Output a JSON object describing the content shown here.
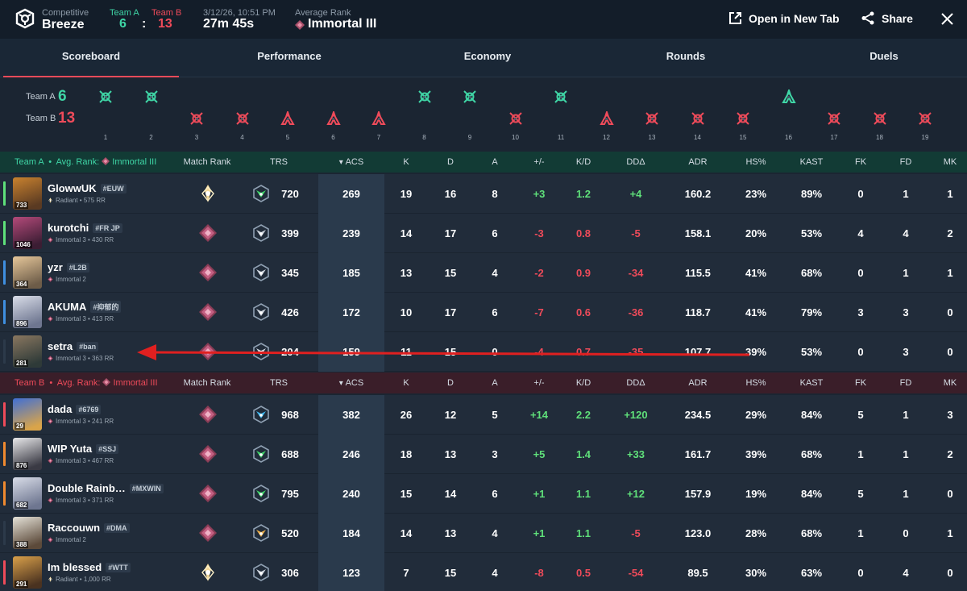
{
  "header": {
    "mode": "Competitive",
    "map": "Breeze",
    "team_a_label": "Team A",
    "team_b_label": "Team B",
    "team_a_score": "6",
    "team_b_score": "13",
    "colon": ":",
    "date": "3/12/26, 10:51 PM",
    "duration": "27m 45s",
    "avg_rank_label": "Average Rank",
    "avg_rank": "Immortal III",
    "open_tab": "Open in New Tab",
    "share": "Share"
  },
  "tabs": [
    "Scoreboard",
    "Performance",
    "Economy",
    "Rounds",
    "Duels"
  ],
  "timeline": {
    "team_a_label": "Team A",
    "team_b_label": "Team B",
    "team_a_score": "6",
    "team_b_score": "13",
    "rounds": [
      {
        "n": "1",
        "winner": "A",
        "type": "elim"
      },
      {
        "n": "2",
        "winner": "A",
        "type": "elim"
      },
      {
        "n": "3",
        "winner": "B",
        "type": "elim"
      },
      {
        "n": "4",
        "winner": "B",
        "type": "elim"
      },
      {
        "n": "5",
        "winner": "B",
        "type": "spike"
      },
      {
        "n": "6",
        "winner": "B",
        "type": "spike"
      },
      {
        "n": "7",
        "winner": "B",
        "type": "spike"
      },
      {
        "n": "8",
        "winner": "A",
        "type": "elim"
      },
      {
        "n": "9",
        "winner": "A",
        "type": "elim"
      },
      {
        "n": "10",
        "winner": "B",
        "type": "elim"
      },
      {
        "n": "11",
        "winner": "A",
        "type": "elim"
      },
      {
        "n": "12",
        "winner": "B",
        "type": "spike"
      },
      {
        "n": "13",
        "winner": "B",
        "type": "elim"
      },
      {
        "n": "14",
        "winner": "B",
        "type": "elim"
      },
      {
        "n": "15",
        "winner": "B",
        "type": "elim"
      },
      {
        "n": "16",
        "winner": "A",
        "type": "spike"
      },
      {
        "n": "17",
        "winner": "B",
        "type": "elim"
      },
      {
        "n": "18",
        "winner": "B",
        "type": "elim"
      },
      {
        "n": "19",
        "winner": "B",
        "type": "elim"
      }
    ]
  },
  "columns": {
    "match_rank": "Match Rank",
    "trs": "TRS",
    "acs": "ACS",
    "k": "K",
    "d": "D",
    "a": "A",
    "pm": "+/-",
    "kd": "K/D",
    "dda": "DDΔ",
    "adr": "ADR",
    "hs": "HS%",
    "kast": "KAST",
    "fk": "FK",
    "fd": "FD",
    "mk": "MK"
  },
  "team_a": {
    "name": "Team A",
    "avg_label": "Avg. Rank:",
    "avg_rank": "Immortal III",
    "color": "#3fd6a6",
    "players": [
      {
        "name": "GlowwUK",
        "tag": "#EUW",
        "rank": "Radiant",
        "rr": "575 RR",
        "level": "733",
        "accent": "#5fe07a",
        "match_rank": "radiant",
        "trs_tier": "green",
        "trs": "720",
        "acs": "269",
        "k": "19",
        "d": "16",
        "a": "8",
        "pm": "+3",
        "kd": "1.2",
        "dda": "+4",
        "adr": "160.2",
        "hs": "23%",
        "kast": "89%",
        "fk": "0",
        "fd": "1",
        "mk": "1",
        "av1": "#c9822f",
        "av2": "#5a3a22"
      },
      {
        "name": "kurotchi",
        "tag": "#FR JP",
        "rank": "Immortal 3",
        "rr": "430 RR",
        "level": "1046",
        "accent": "#5fe07a",
        "match_rank": "immortal",
        "trs_tier": "grey",
        "trs": "399",
        "acs": "239",
        "k": "14",
        "d": "17",
        "a": "6",
        "pm": "-3",
        "kd": "0.8",
        "dda": "-5",
        "adr": "158.1",
        "hs": "20%",
        "kast": "53%",
        "fk": "4",
        "fd": "4",
        "mk": "2",
        "av1": "#b44a7a",
        "av2": "#3b1d33"
      },
      {
        "name": "yzr",
        "tag": "#L2B",
        "rank": "Immortal 2",
        "rr": "",
        "level": "364",
        "accent": "#3f8fe0",
        "match_rank": "immortal",
        "trs_tier": "grey",
        "trs": "345",
        "acs": "185",
        "k": "13",
        "d": "15",
        "a": "4",
        "pm": "-2",
        "kd": "0.9",
        "dda": "-34",
        "adr": "115.5",
        "hs": "41%",
        "kast": "68%",
        "fk": "0",
        "fd": "1",
        "mk": "1",
        "av1": "#e6c79a",
        "av2": "#6d5c48"
      },
      {
        "name": "AKUMA",
        "tag": "#抑郁的",
        "rank": "Immortal 3",
        "rr": "413 RR",
        "level": "896",
        "accent": "#3f8fe0",
        "match_rank": "immortal",
        "trs_tier": "grey",
        "trs": "426",
        "acs": "172",
        "k": "10",
        "d": "17",
        "a": "6",
        "pm": "-7",
        "kd": "0.6",
        "dda": "-36",
        "adr": "118.7",
        "hs": "41%",
        "kast": "79%",
        "fk": "3",
        "fd": "3",
        "mk": "0",
        "av1": "#d9dde8",
        "av2": "#6e7690"
      },
      {
        "name": "setra",
        "tag": "#ban",
        "rank": "Immortal 3",
        "rr": "363 RR",
        "level": "281",
        "accent": "#2c3a4a",
        "match_rank": "immortal",
        "trs_tier": "grey",
        "trs": "204",
        "acs": "159",
        "k": "11",
        "d": "15",
        "a": "0",
        "pm": "-4",
        "kd": "0.7",
        "dda": "-35",
        "adr": "107.7",
        "hs": "39%",
        "kast": "53%",
        "fk": "0",
        "fd": "3",
        "mk": "0",
        "av1": "#8a7760",
        "av2": "#2e3a38"
      }
    ]
  },
  "team_b": {
    "name": "Team B",
    "avg_label": "Avg. Rank:",
    "avg_rank": "Immortal III",
    "color": "#ef4b5a",
    "players": [
      {
        "name": "dada",
        "tag": "#6769",
        "rank": "Immortal 3",
        "rr": "241 RR",
        "level": "29",
        "accent": "#ef4b5a",
        "match_rank": "immortal",
        "trs_tier": "blue",
        "trs": "968",
        "acs": "382",
        "k": "26",
        "d": "12",
        "a": "5",
        "pm": "+14",
        "kd": "2.2",
        "dda": "+120",
        "adr": "234.5",
        "hs": "29%",
        "kast": "84%",
        "fk": "5",
        "fd": "1",
        "mk": "3",
        "av1": "#3f6fd6",
        "av2": "#d9a44a"
      },
      {
        "name": "WIP Yuta",
        "tag": "#SSJ",
        "rank": "Immortal 3",
        "rr": "467 RR",
        "level": "876",
        "accent": "#f08a2f",
        "match_rank": "immortal",
        "trs_tier": "green",
        "trs": "688",
        "acs": "246",
        "k": "18",
        "d": "13",
        "a": "3",
        "pm": "+5",
        "kd": "1.4",
        "dda": "+33",
        "adr": "161.7",
        "hs": "39%",
        "kast": "68%",
        "fk": "1",
        "fd": "1",
        "mk": "2",
        "av1": "#e8e8ea",
        "av2": "#3a3a44"
      },
      {
        "name": "Double Rainb…",
        "tag": "#MXWIN",
        "rank": "Immortal 3",
        "rr": "371 RR",
        "level": "682",
        "accent": "#f08a2f",
        "match_rank": "immortal",
        "trs_tier": "green",
        "trs": "795",
        "acs": "240",
        "k": "15",
        "d": "14",
        "a": "6",
        "pm": "+1",
        "kd": "1.1",
        "dda": "+12",
        "adr": "157.9",
        "hs": "19%",
        "kast": "84%",
        "fk": "5",
        "fd": "1",
        "mk": "0",
        "av1": "#d9dde8",
        "av2": "#6e7690"
      },
      {
        "name": "Raccouwn",
        "tag": "#DMA",
        "rank": "Immortal 2",
        "rr": "",
        "level": "388",
        "accent": "#2c3a4a",
        "match_rank": "immortal",
        "trs_tier": "gold",
        "trs": "520",
        "acs": "184",
        "k": "14",
        "d": "13",
        "a": "4",
        "pm": "+1",
        "kd": "1.1",
        "dda": "-5",
        "adr": "123.0",
        "hs": "28%",
        "kast": "68%",
        "fk": "1",
        "fd": "0",
        "mk": "1",
        "av1": "#e5e2d8",
        "av2": "#5c4a3a"
      },
      {
        "name": "Im blessed",
        "tag": "#WTT",
        "rank": "Radiant",
        "rr": "1,000 RR",
        "level": "291",
        "accent": "#ef4b5a",
        "match_rank": "radiant",
        "trs_tier": "grey",
        "trs": "306",
        "acs": "123",
        "k": "7",
        "d": "15",
        "a": "4",
        "pm": "-8",
        "kd": "0.5",
        "dda": "-54",
        "adr": "89.5",
        "hs": "30%",
        "kast": "63%",
        "fk": "0",
        "fd": "4",
        "mk": "0",
        "av1": "#d9a04a",
        "av2": "#4a3220"
      }
    ]
  },
  "colors": {
    "team_a": "#3fd6a6",
    "team_b": "#ef4b5a",
    "positive": "#5fe07a",
    "negative": "#ef4b5a",
    "annotation": "#e02020"
  }
}
